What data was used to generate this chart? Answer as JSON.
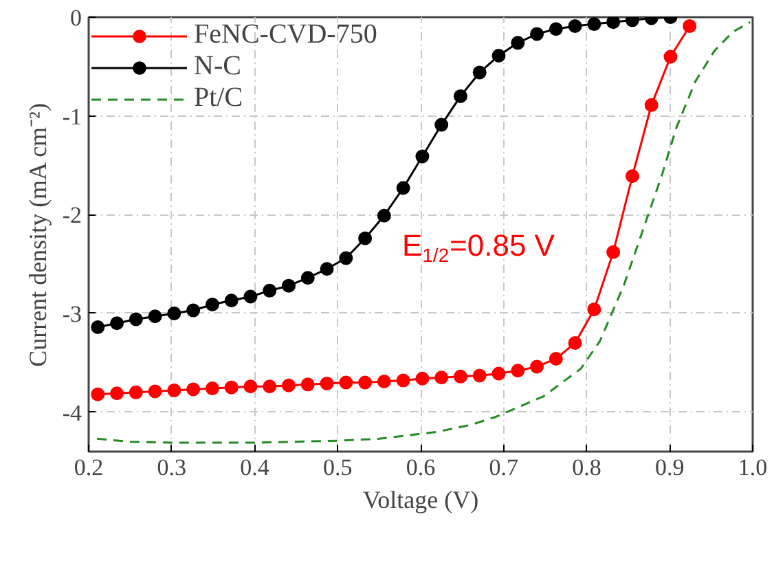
{
  "chart_data": {
    "type": "line",
    "xlabel": "Voltage (V)",
    "ylabel": "Current density (mA cm⁻²)",
    "xlim": [
      0.2,
      1.0
    ],
    "ylim": [
      -4.4,
      0
    ],
    "xticks": [
      0.2,
      0.3,
      0.4,
      0.5,
      0.6,
      0.7,
      0.8,
      0.9,
      {
        "value": 1.0,
        "label": "1.0"
      }
    ],
    "yticks": [
      0,
      -1,
      -2,
      -3,
      -4
    ],
    "grid": true,
    "legend": "top left",
    "series": [
      {
        "name": "FeNC-CVD-750",
        "color": "#ff0000",
        "marker": "circle",
        "line_style": "solid",
        "x": [
          0.211,
          0.234,
          0.257,
          0.28,
          0.303,
          0.326,
          0.349,
          0.372,
          0.395,
          0.418,
          0.441,
          0.464,
          0.487,
          0.51,
          0.533,
          0.556,
          0.579,
          0.602,
          0.625,
          0.648,
          0.671,
          0.694,
          0.717,
          0.74,
          0.763,
          0.786,
          0.809,
          0.832,
          0.855,
          0.878,
          0.901,
          0.924
        ],
        "values": [
          -3.82,
          -3.81,
          -3.8,
          -3.79,
          -3.78,
          -3.77,
          -3.76,
          -3.75,
          -3.74,
          -3.74,
          -3.73,
          -3.72,
          -3.71,
          -3.7,
          -3.7,
          -3.69,
          -3.68,
          -3.66,
          -3.65,
          -3.64,
          -3.63,
          -3.61,
          -3.58,
          -3.54,
          -3.46,
          -3.3,
          -2.96,
          -2.38,
          -1.61,
          -0.89,
          -0.4,
          -0.09
        ]
      },
      {
        "name": "N-C",
        "color": "#000000",
        "marker": "circle",
        "line_style": "solid",
        "x": [
          0.211,
          0.234,
          0.257,
          0.28,
          0.303,
          0.326,
          0.349,
          0.372,
          0.395,
          0.418,
          0.441,
          0.464,
          0.487,
          0.51,
          0.533,
          0.556,
          0.579,
          0.602,
          0.625,
          0.648,
          0.671,
          0.694,
          0.717,
          0.74,
          0.763,
          0.786,
          0.809,
          0.832,
          0.855,
          0.878,
          0.901
        ],
        "values": [
          -3.14,
          -3.1,
          -3.06,
          -3.03,
          -3.0,
          -2.97,
          -2.91,
          -2.87,
          -2.83,
          -2.77,
          -2.72,
          -2.64,
          -2.55,
          -2.44,
          -2.24,
          -2.01,
          -1.73,
          -1.41,
          -1.09,
          -0.8,
          -0.56,
          -0.39,
          -0.26,
          -0.17,
          -0.12,
          -0.09,
          -0.07,
          -0.05,
          -0.03,
          -0.01,
          0.0
        ]
      },
      {
        "name": "Pt/C",
        "color": "#228b22",
        "marker": "none",
        "line_style": "dashed",
        "x": [
          0.21,
          0.25,
          0.3,
          0.35,
          0.4,
          0.45,
          0.5,
          0.55,
          0.58,
          0.62,
          0.66,
          0.69,
          0.748,
          0.793,
          0.816,
          0.845,
          0.868,
          0.891,
          0.908,
          0.931,
          0.954,
          0.976,
          0.997
        ],
        "values": [
          -4.27,
          -4.3,
          -4.31,
          -4.31,
          -4.31,
          -4.3,
          -4.29,
          -4.27,
          -4.24,
          -4.2,
          -4.13,
          -4.05,
          -3.84,
          -3.56,
          -3.28,
          -2.71,
          -2.15,
          -1.59,
          -1.12,
          -0.65,
          -0.34,
          -0.15,
          -0.05
        ]
      }
    ],
    "annotations": [
      "E$_{1/2}$=0.85 V"
    ]
  }
}
